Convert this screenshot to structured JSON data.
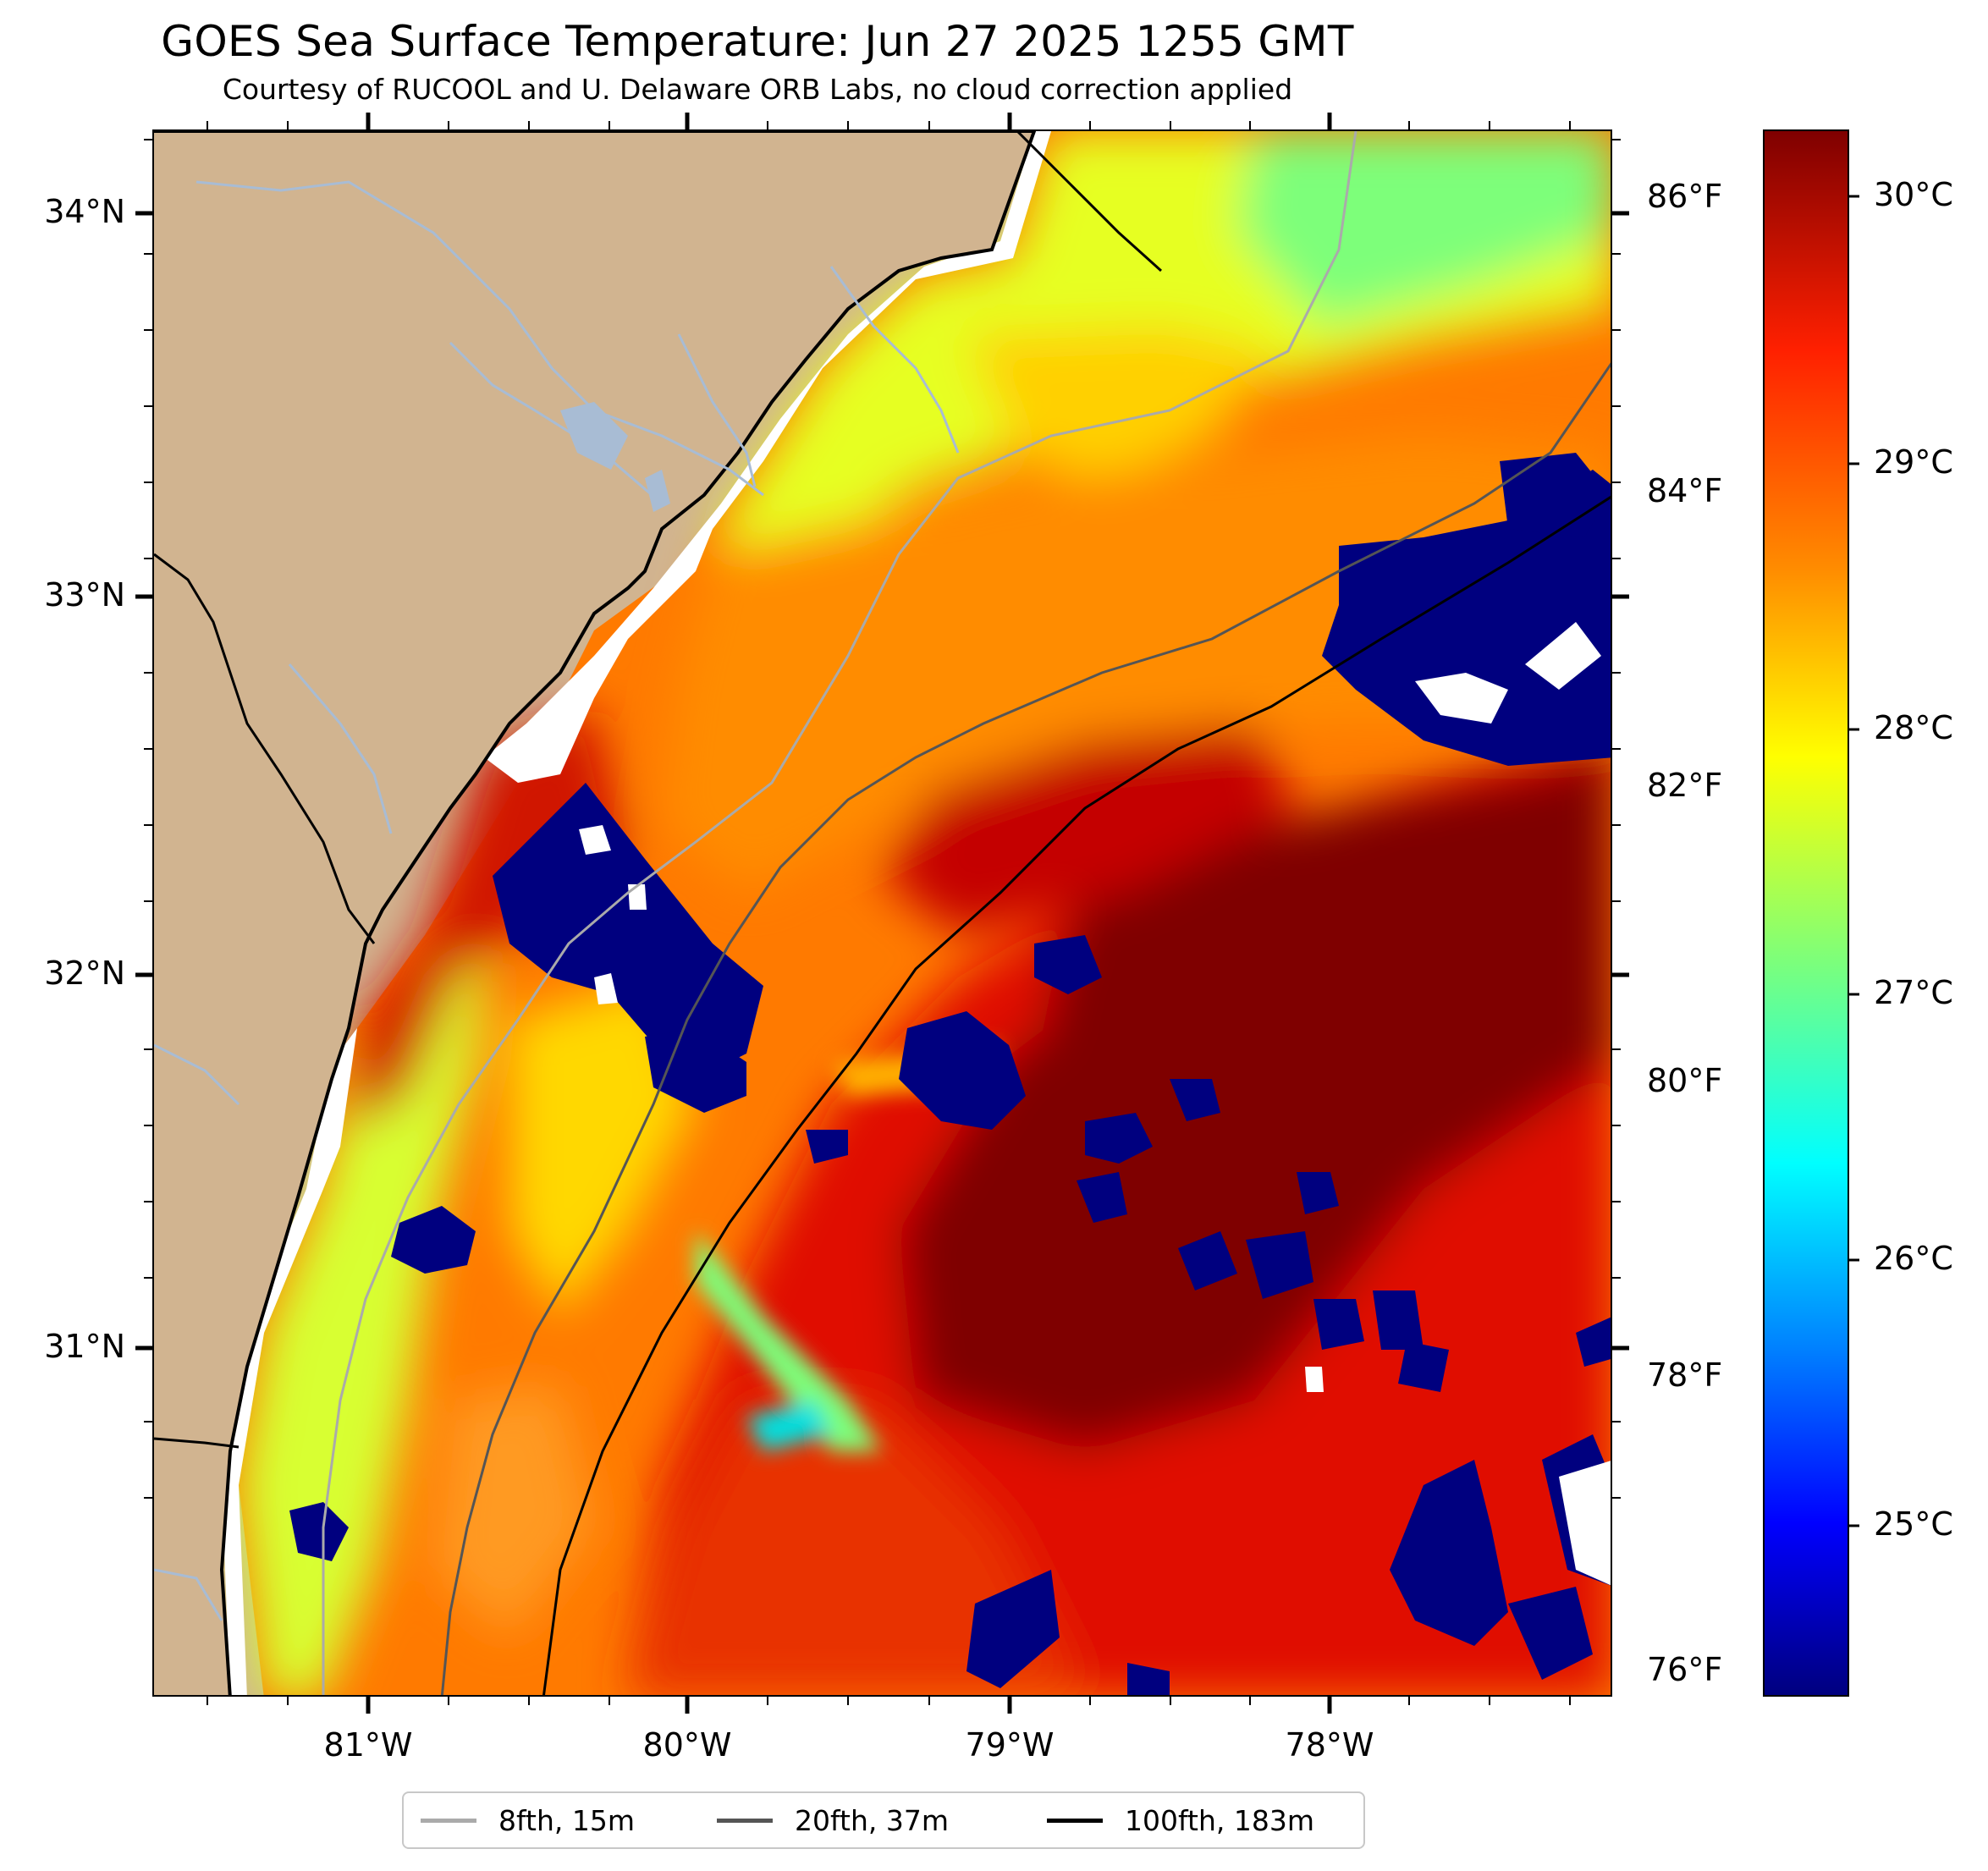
{
  "title": "GOES Sea Surface Temperature: Jun 27 2025 1255 GMT",
  "subtitle": "Courtesy of RUCOOL and U. Delaware ORB Labs, no cloud correction applied",
  "axes": {
    "lat_labels": [
      "34°N",
      "33°N",
      "32°N",
      "31°N"
    ],
    "lon_labels": [
      "81°W",
      "80°W",
      "79°W",
      "78°W"
    ],
    "f_labels": [
      "86°F",
      "84°F",
      "82°F",
      "80°F",
      "78°F",
      "76°F"
    ]
  },
  "colorbar": {
    "labels": [
      "30°C",
      "29°C",
      "28°C",
      "27°C",
      "26°C",
      "25°C"
    ],
    "colormap": [
      "#00007f",
      "#0000ff",
      "#007fff",
      "#00ffff",
      "#7dff7a",
      "#ffff00",
      "#ff8c00",
      "#ff2000",
      "#7f0000"
    ]
  },
  "legend": [
    {
      "label": "8fth, 15m",
      "color": "#aaaaaa"
    },
    {
      "label": "20fth, 37m",
      "color": "#555555"
    },
    {
      "label": "100fth, 183m",
      "color": "#000000"
    }
  ],
  "colors": {
    "land": "#d1b490",
    "river": "#a8bcd4",
    "no_data": "#ffffff"
  }
}
